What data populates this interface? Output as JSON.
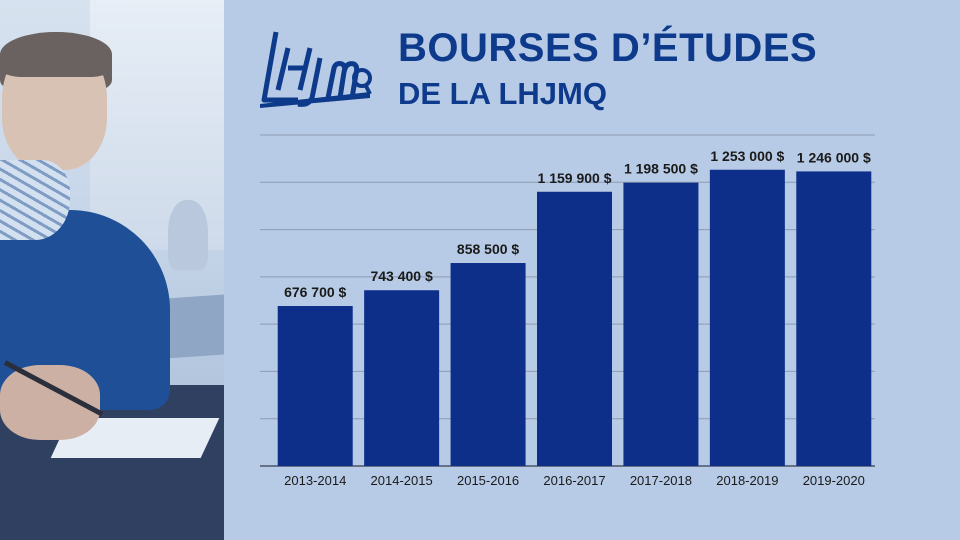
{
  "header": {
    "logo_text": "LHJMQ",
    "title": "BOURSES D’ÉTUDES",
    "subtitle": "DE LA LHJMQ"
  },
  "colors": {
    "background": "#b7cbe6",
    "bar": "#0d2f8a",
    "title": "#0e3a8c",
    "grid": "#8c9bb0",
    "label": "#1a1a1a"
  },
  "chart_data": {
    "type": "bar",
    "title": "BOURSES D’ÉTUDES DE LA LHJMQ",
    "xlabel": "",
    "ylabel": "",
    "categories": [
      "2013-2014",
      "2014-2015",
      "2015-2016",
      "2016-2017",
      "2017-2018",
      "2018-2019",
      "2019-2020"
    ],
    "values": [
      676700,
      743400,
      858500,
      1159900,
      1198500,
      1253000,
      1246000
    ],
    "value_labels": [
      "676 700 $",
      "743 400 $",
      "858 500 $",
      "1 159 900 $",
      "1 198 500 $",
      "1 253 000 $",
      "1 246 000 $"
    ],
    "ylim": [
      0,
      1400000
    ],
    "grid": true,
    "legend": "none"
  }
}
